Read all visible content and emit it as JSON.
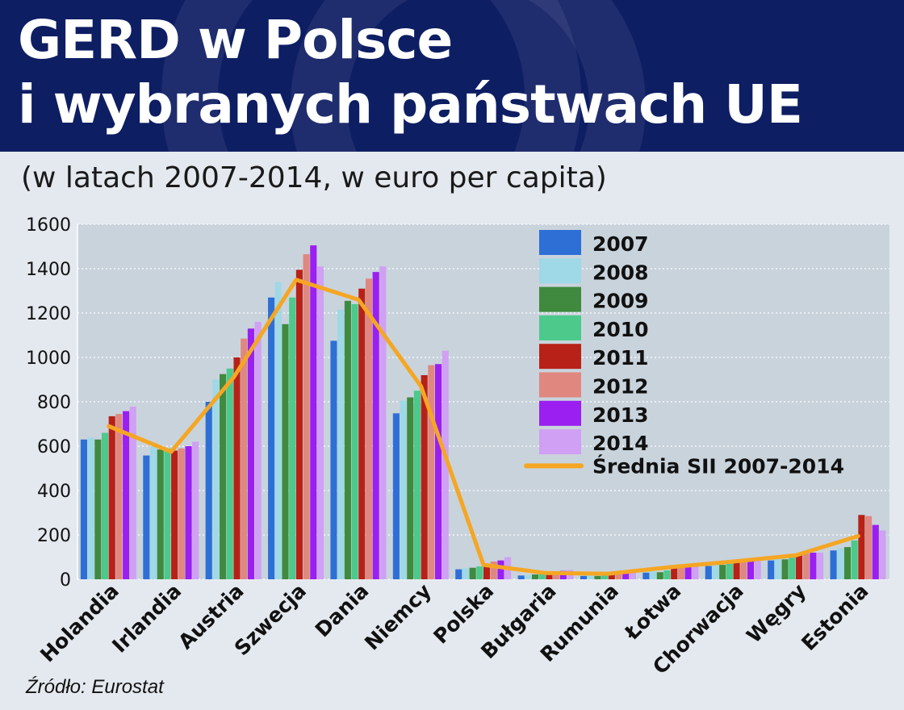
{
  "header": {
    "title_line1": "GERD w Polsce",
    "title_line2": "i wybranych państwach UE"
  },
  "subtitle": "(w latach 2007-2014, w euro per capita)",
  "source": "Źródło: Eurostat",
  "colors": {
    "header_bg": "#0e1e63",
    "plot_bg": "#c9d3dc",
    "average_line": "#f5a623"
  },
  "chart_data": {
    "type": "bar",
    "ylim": [
      0,
      1600
    ],
    "yticks": [
      0,
      200,
      400,
      600,
      800,
      1000,
      1200,
      1400,
      1600
    ],
    "grid": true,
    "legend_position": "top-right",
    "categories": [
      "Holandia",
      "Irlandia",
      "Austria",
      "Szwecja",
      "Dania",
      "Niemcy",
      "Polska",
      "Bułgaria",
      "Rumunia",
      "Łotwa",
      "Chorwacja",
      "Węgry",
      "Estonia"
    ],
    "series": [
      {
        "name": "2007",
        "color": "#2e6fd6",
        "values": [
          630,
          558,
          800,
          1270,
          1075,
          748,
          45,
          17,
          15,
          30,
          60,
          85,
          130
        ]
      },
      {
        "name": "2008",
        "color": "#9fd8e6",
        "values": [
          638,
          600,
          900,
          1340,
          1215,
          805,
          50,
          20,
          20,
          35,
          65,
          95,
          140
        ]
      },
      {
        "name": "2009",
        "color": "#3f8a3f",
        "values": [
          630,
          585,
          925,
          1150,
          1255,
          820,
          52,
          22,
          15,
          32,
          65,
          90,
          145
        ]
      },
      {
        "name": "2010",
        "color": "#4cc98b",
        "values": [
          660,
          590,
          950,
          1270,
          1240,
          850,
          58,
          25,
          20,
          40,
          70,
          100,
          175
        ]
      },
      {
        "name": "2011",
        "color": "#b72117",
        "values": [
          735,
          580,
          1000,
          1395,
          1310,
          920,
          68,
          28,
          25,
          50,
          75,
          110,
          290
        ]
      },
      {
        "name": "2012",
        "color": "#e0877f",
        "values": [
          745,
          590,
          1085,
          1465,
          1355,
          965,
          80,
          32,
          25,
          55,
          80,
          115,
          285
        ]
      },
      {
        "name": "2013",
        "color": "#9a1ff0",
        "values": [
          758,
          600,
          1130,
          1505,
          1385,
          970,
          85,
          38,
          25,
          60,
          80,
          120,
          245
        ]
      },
      {
        "name": "2014",
        "color": "#cfa0f3",
        "values": [
          778,
          620,
          1160,
          1410,
          1410,
          1030,
          100,
          42,
          30,
          65,
          85,
          120,
          220
        ]
      }
    ],
    "average_series": {
      "name": "Średnia SII 2007-2014",
      "values": [
        690,
        575,
        910,
        1350,
        1260,
        870,
        65,
        28,
        25,
        55,
        80,
        108,
        195
      ]
    }
  }
}
